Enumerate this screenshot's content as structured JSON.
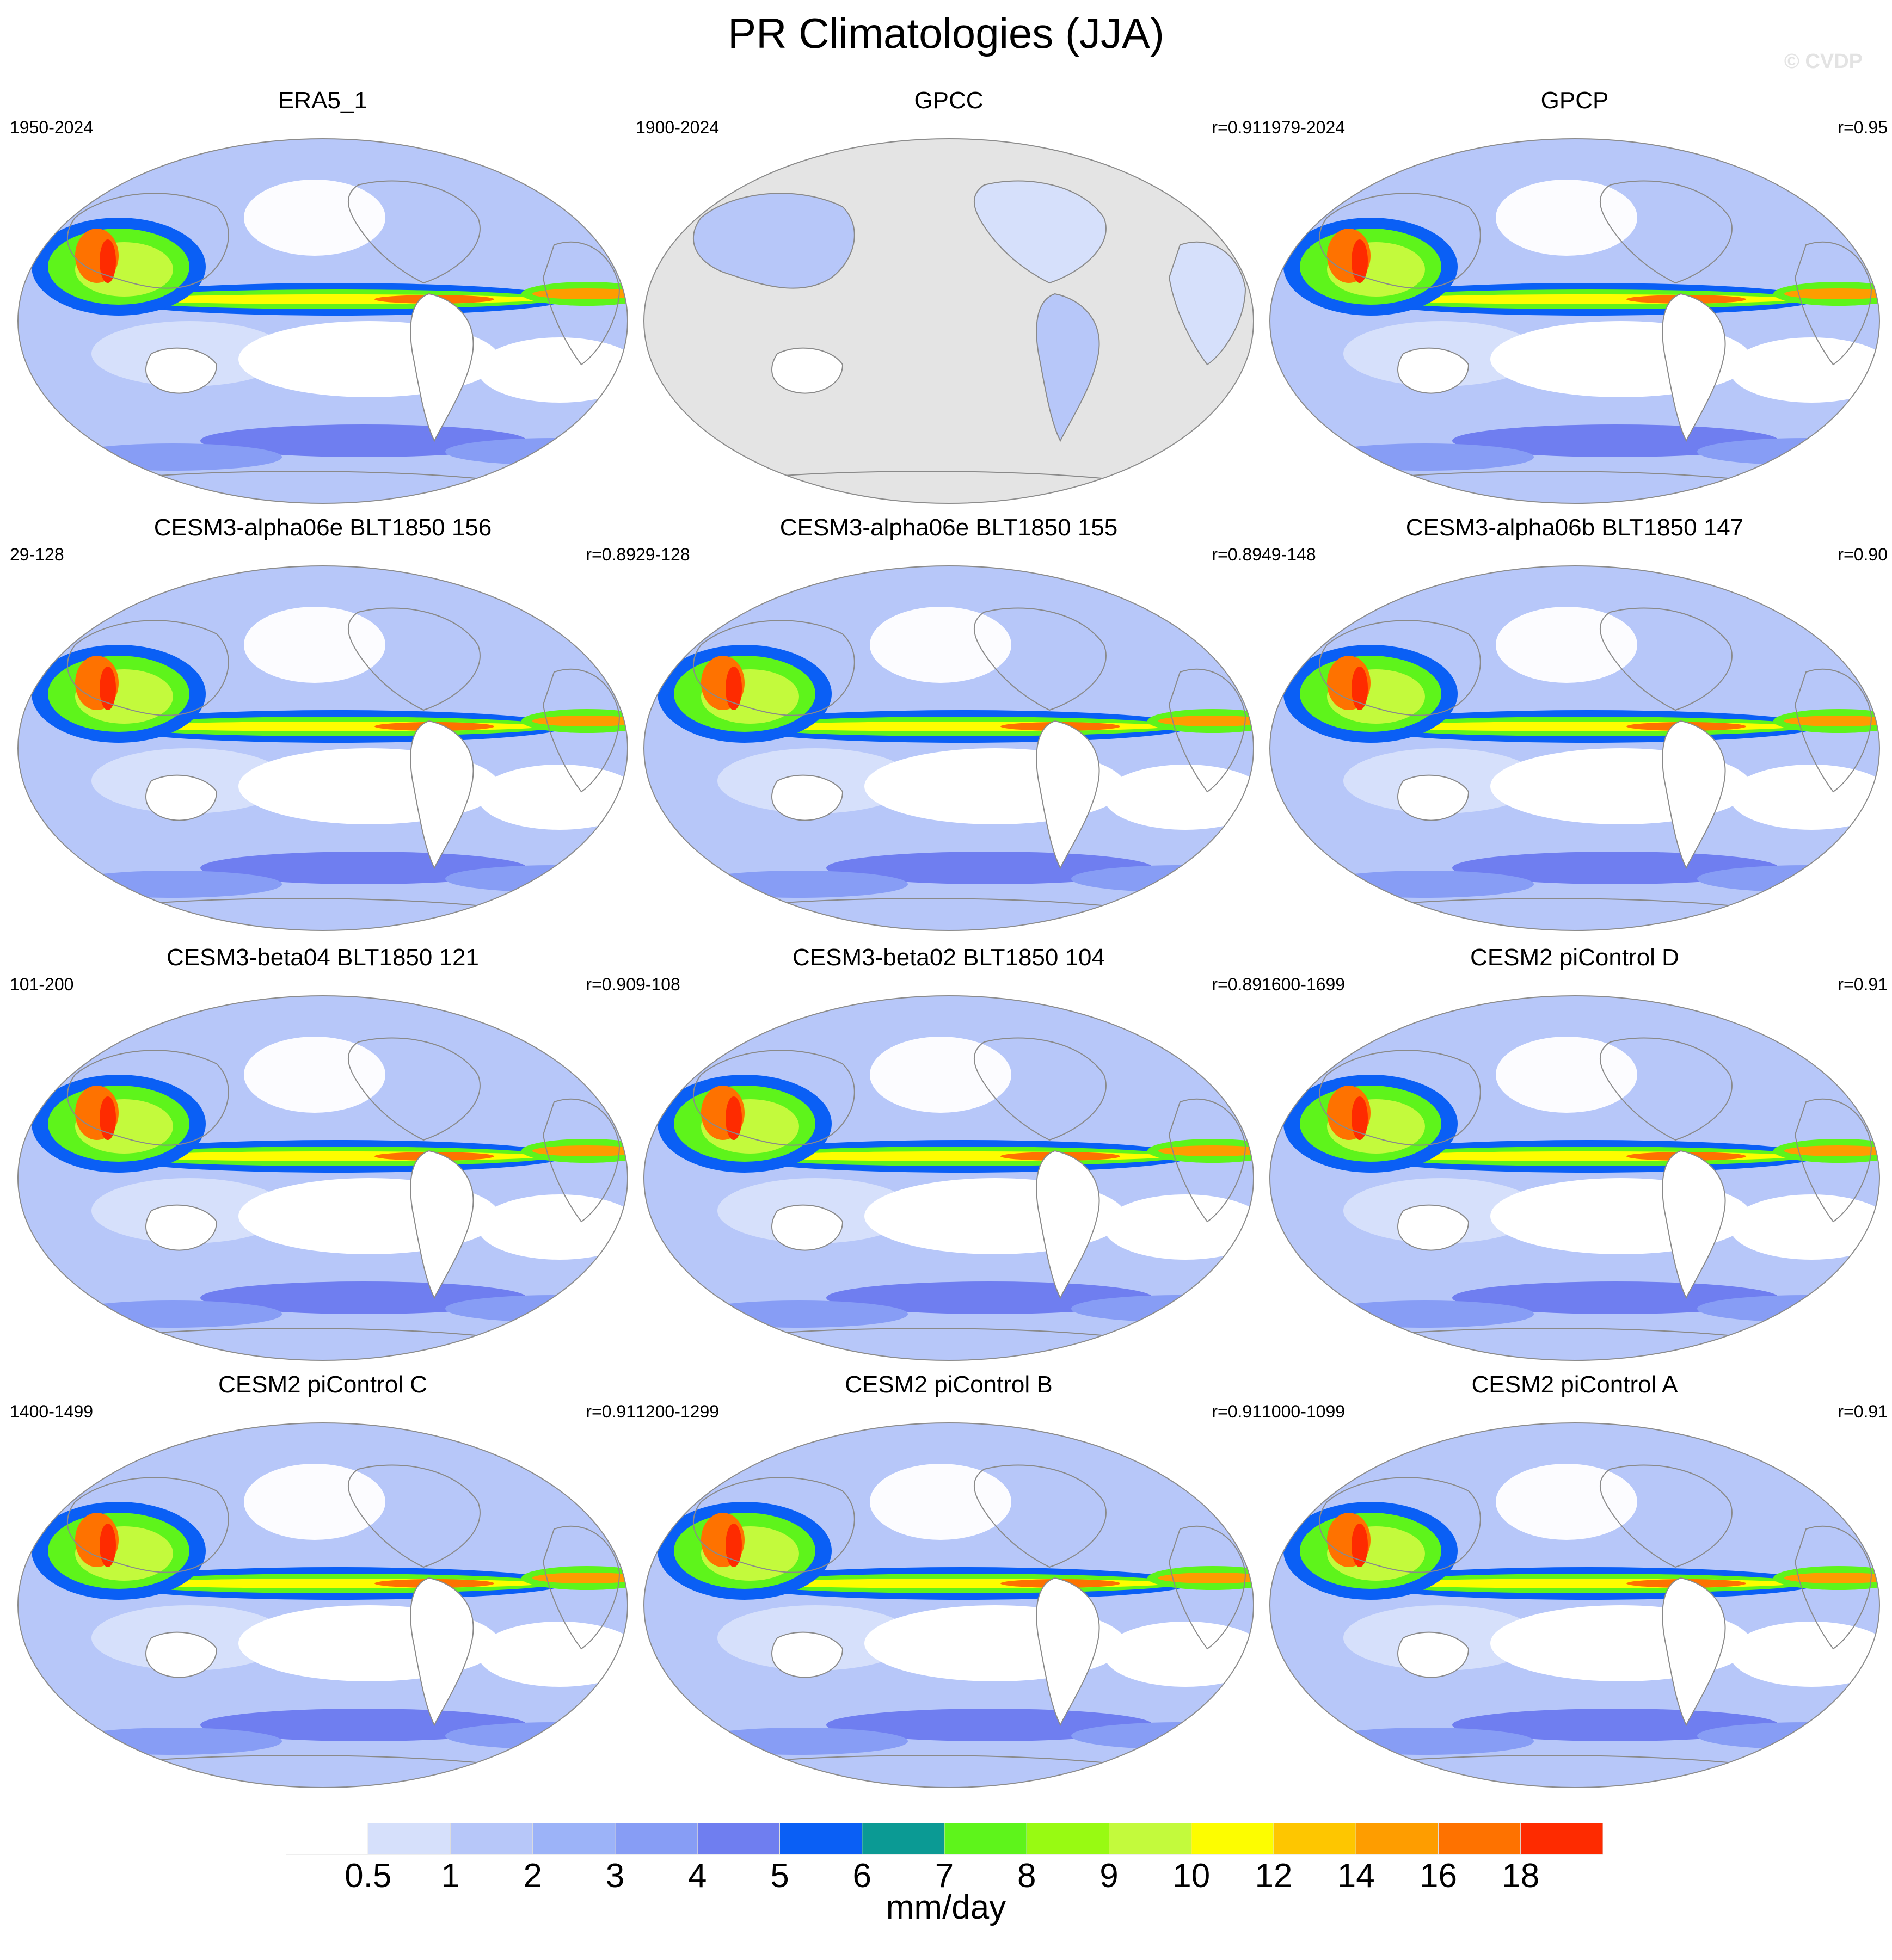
{
  "title": "PR Climatologies (JJA)",
  "watermark": "© CVDP",
  "panels": [
    {
      "title": "ERA5_1",
      "period": "1950-2024",
      "r": "",
      "land_only": false
    },
    {
      "title": "GPCC",
      "period": "1900-2024",
      "r": "r=0.91",
      "land_only": true
    },
    {
      "title": "GPCP",
      "period": "1979-2024",
      "r": "r=0.95",
      "land_only": false
    },
    {
      "title": "CESM3-alpha06e BLT1850 156",
      "period": "29-128",
      "r": "r=0.89",
      "land_only": false
    },
    {
      "title": "CESM3-alpha06e BLT1850 155",
      "period": "29-128",
      "r": "r=0.89",
      "land_only": false
    },
    {
      "title": "CESM3-alpha06b BLT1850 147",
      "period": "49-148",
      "r": "r=0.90",
      "land_only": false
    },
    {
      "title": "CESM3-beta04 BLT1850 121",
      "period": "101-200",
      "r": "r=0.90",
      "land_only": false
    },
    {
      "title": "CESM3-beta02 BLT1850 104",
      "period": "9-108",
      "r": "r=0.89",
      "land_only": false
    },
    {
      "title": "CESM2 piControl D",
      "period": "1600-1699",
      "r": "r=0.91",
      "land_only": false
    },
    {
      "title": "CESM2 piControl C",
      "period": "1400-1499",
      "r": "r=0.91",
      "land_only": false
    },
    {
      "title": "CESM2 piControl B",
      "period": "1200-1299",
      "r": "r=0.91",
      "land_only": false
    },
    {
      "title": "CESM2 piControl A",
      "period": "1000-1099",
      "r": "r=0.91",
      "land_only": false
    }
  ],
  "colorbar": {
    "units": "mm/day",
    "labels": [
      "0.5",
      "1",
      "2",
      "3",
      "4",
      "5",
      "6",
      "7",
      "8",
      "9",
      "10",
      "12",
      "14",
      "16",
      "18"
    ],
    "colors": [
      "#ffffff",
      "#d6e0fb",
      "#b7c7f9",
      "#9cb3f8",
      "#879df5",
      "#6f7ef0",
      "#0a5ff5",
      "#0b9a94",
      "#5ef41b",
      "#98fa12",
      "#c3fa3c",
      "#fdfd00",
      "#fec600",
      "#fe9d00",
      "#fe7200",
      "#fe2b00"
    ]
  }
}
